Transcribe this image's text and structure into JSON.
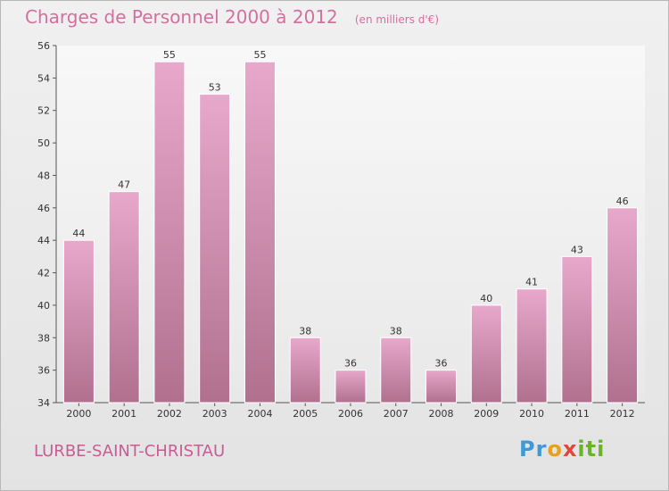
{
  "chart_data": {
    "type": "bar",
    "title": "Charges de Personnel 2000 à 2012",
    "subtitle": "(en milliers d'€)",
    "categories": [
      "2000",
      "2001",
      "2002",
      "2003",
      "2004",
      "2005",
      "2006",
      "2007",
      "2008",
      "2009",
      "2010",
      "2011",
      "2012"
    ],
    "values": [
      44,
      47,
      55,
      53,
      55,
      38,
      36,
      38,
      36,
      40,
      41,
      43,
      46
    ],
    "ylim": [
      34,
      56
    ],
    "yticks": [
      34,
      36,
      38,
      40,
      42,
      44,
      46,
      48,
      50,
      52,
      54,
      56
    ],
    "grid": false,
    "bar_color": "#d98fbc"
  },
  "footer": {
    "commune": "LURBE-SAINT-CHRISTAU",
    "logo": "Proxiti"
  }
}
